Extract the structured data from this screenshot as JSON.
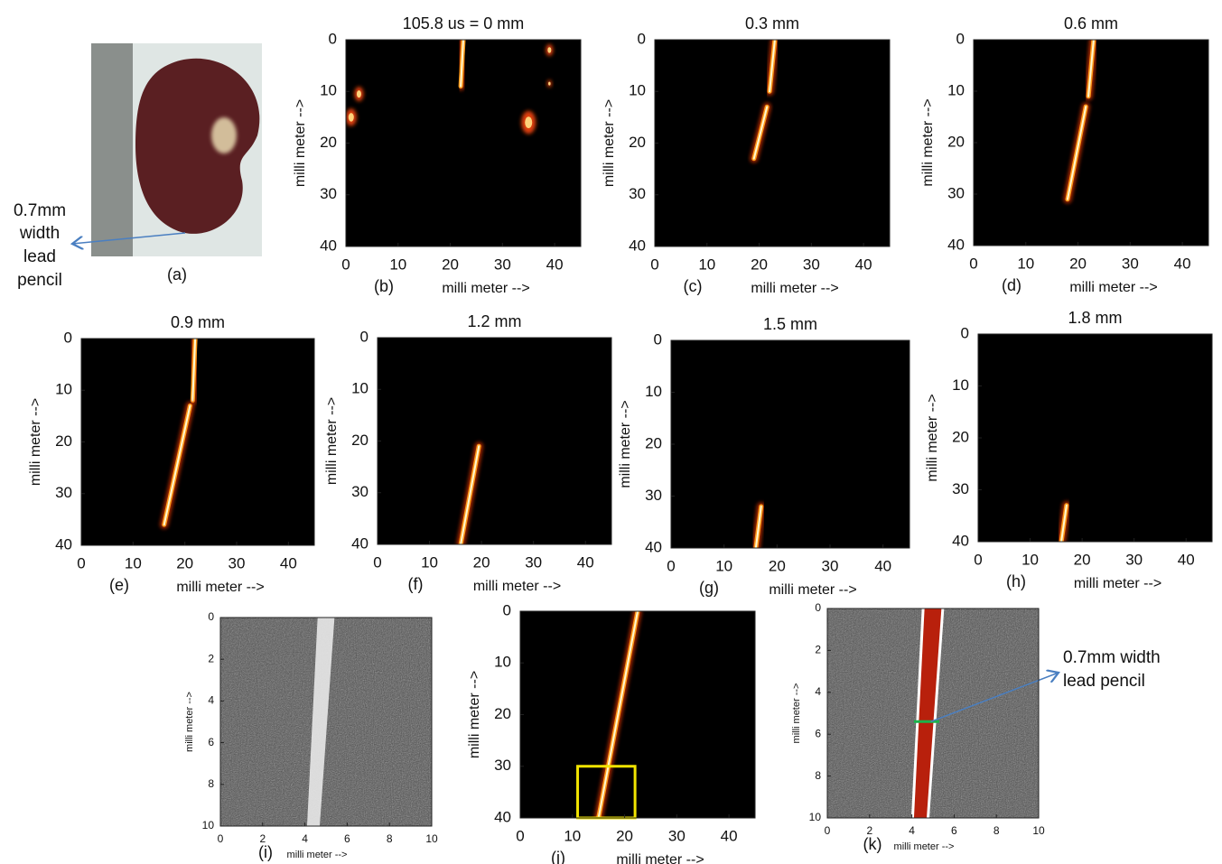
{
  "panel_a": {
    "caption": "(a)",
    "annotation": [
      "0.7mm",
      "width",
      "lead",
      "pencil"
    ]
  },
  "panels": [
    {
      "caption": "(b)",
      "title": "105.8 us = 0 mm",
      "xlabel": "milli meter -->",
      "ylabel": "milli meter -->",
      "xticks": [
        0,
        10,
        20,
        30,
        40
      ],
      "yticks": [
        0,
        10,
        20,
        30,
        40
      ]
    },
    {
      "caption": "(c)",
      "title": "0.3 mm",
      "xlabel": "milli meter -->",
      "ylabel": "milli meter -->",
      "xticks": [
        0,
        10,
        20,
        30,
        40
      ],
      "yticks": [
        0,
        10,
        20,
        30,
        40
      ]
    },
    {
      "caption": "(d)",
      "title": "0.6 mm",
      "xlabel": "milli meter -->",
      "ylabel": "milli meter -->",
      "xticks": [
        0,
        10,
        20,
        30,
        40
      ],
      "yticks": [
        0,
        10,
        20,
        30,
        40
      ]
    },
    {
      "caption": "(e)",
      "title": "0.9 mm",
      "xlabel": "milli meter -->",
      "ylabel": "milli meter -->",
      "xticks": [
        0,
        10,
        20,
        30,
        40
      ],
      "yticks": [
        0,
        10,
        20,
        30,
        40
      ]
    },
    {
      "caption": "(f)",
      "title": "1.2 mm",
      "xlabel": "milli meter -->",
      "ylabel": "milli meter -->",
      "xticks": [
        0,
        10,
        20,
        30,
        40
      ],
      "yticks": [
        0,
        10,
        20,
        30,
        40
      ]
    },
    {
      "caption": "(g)",
      "title": "1.5 mm",
      "xlabel": "milli meter -->",
      "ylabel": "milli meter -->",
      "xticks": [
        0,
        10,
        20,
        30,
        40
      ],
      "yticks": [
        0,
        10,
        20,
        30,
        40
      ]
    },
    {
      "caption": "(h)",
      "title": "1.8 mm",
      "xlabel": "milli meter -->",
      "ylabel": "milli meter -->",
      "xticks": [
        0,
        10,
        20,
        30,
        40
      ],
      "yticks": [
        0,
        10,
        20,
        30,
        40
      ]
    },
    {
      "caption": "(i)",
      "xlabel": "milli meter -->",
      "ylabel": "milli meter -->",
      "xticks": [
        0,
        2,
        4,
        6,
        8,
        10
      ],
      "yticks": [
        0,
        2,
        4,
        6,
        8,
        10
      ]
    },
    {
      "caption": "(j)",
      "xlabel": "milli meter -->",
      "ylabel": "milli meter -->",
      "xticks": [
        0,
        10,
        20,
        30,
        40
      ],
      "yticks": [
        0,
        10,
        20,
        30,
        40
      ]
    },
    {
      "caption": "(k)",
      "xlabel": "milli meter -->",
      "ylabel": "milli meter -->",
      "xticks": [
        0,
        2,
        4,
        6,
        8,
        10
      ],
      "yticks": [
        0,
        2,
        4,
        6,
        8,
        10
      ],
      "annotation": [
        "0.7mm width",
        "lead pencil"
      ]
    }
  ]
}
